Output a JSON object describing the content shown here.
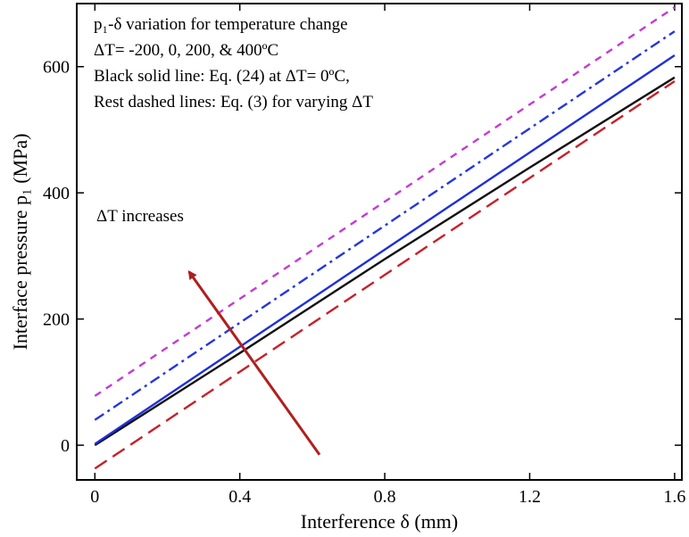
{
  "chart_data": {
    "type": "line",
    "xlabel": "Interference δ (mm)",
    "ylabel": "Interface pressure p₁ (MPa)",
    "xlim": [
      -0.05,
      1.62
    ],
    "ylim": [
      -55,
      700
    ],
    "xticks": [
      0,
      0.4,
      0.8,
      1.2,
      1.6
    ],
    "xtick_labels": [
      "0",
      "0.4",
      "0.8",
      "1.2",
      "1.6"
    ],
    "yticks": [
      0,
      200,
      400,
      600
    ],
    "ytick_labels": [
      "0",
      "200",
      "400",
      "600"
    ],
    "grid": false,
    "legend": "none",
    "annotation_lines": [
      "p₁-δ variation for temperature change",
      "ΔT= -200, 0, 200, & 400ºC",
      "Black solid line: Eq. (24) at ΔT= 0ºC,",
      "Rest dashed lines: Eq. (3) for varying ΔT"
    ],
    "arrow_label": "ΔT increases",
    "arrow": {
      "from": [
        0.62,
        -15
      ],
      "to": [
        0.26,
        275
      ],
      "color": "#b01e1e"
    },
    "series": [
      {
        "x": [
          0,
          1.6
        ],
        "y": [
          -37,
          577
        ],
        "color": "#c8202a",
        "style": "longdash"
      },
      {
        "x": [
          0,
          0.4,
          0.8,
          1.2,
          1.6
        ],
        "y": [
          0,
          146,
          295,
          440,
          583
        ],
        "color": "#111111",
        "style": "solid"
      },
      {
        "x": [
          0,
          1.6
        ],
        "y": [
          2,
          618
        ],
        "color": "#1f2fd8",
        "style": "solid"
      },
      {
        "x": [
          0,
          1.6
        ],
        "y": [
          40,
          656
        ],
        "color": "#2436e0",
        "style": "dashdot"
      },
      {
        "x": [
          0,
          1.6
        ],
        "y": [
          78,
          694
        ],
        "color": "#c43ad6",
        "style": "shortdash"
      }
    ]
  }
}
